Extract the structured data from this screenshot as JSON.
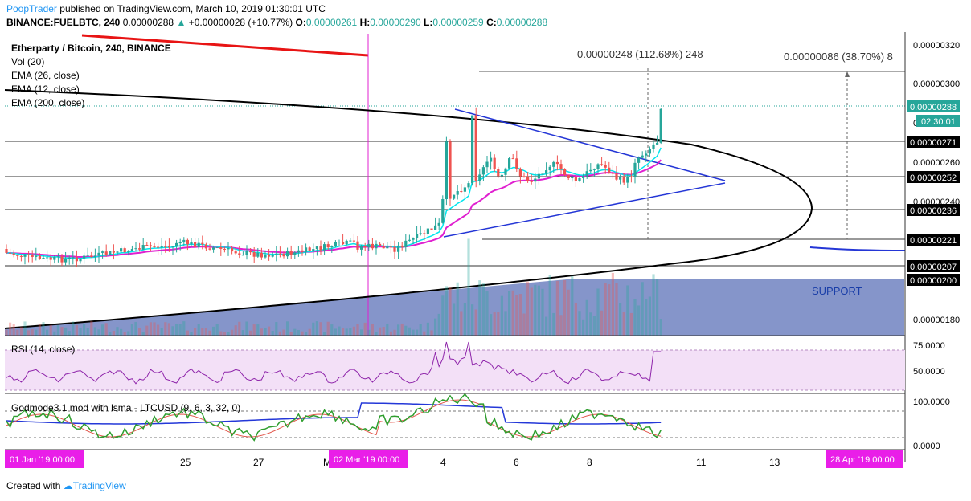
{
  "header": {
    "publisher": "PoopTrader",
    "published_text": "published on TradingView.com, March 10, 2019 01:30:01 UTC",
    "symbol": "BINANCE:FUELBTC, 240",
    "last": "0.00000288",
    "change": "+0.00000028 (+10.77%)",
    "o_label": "O:",
    "o": "0.00000261",
    "h_label": "H:",
    "h": "0.00000290",
    "l_label": "L:",
    "l": "0.00000259",
    "c_label": "C:",
    "c": "0.00000288"
  },
  "legend": {
    "title": "Etherparty / Bitcoin, 240, BINANCE",
    "vol": "Vol (20)",
    "ema26": "EMA (26, close)",
    "ema12": "EMA (12, close)",
    "ema200": "EMA (200, close)"
  },
  "annotations": {
    "measure1": "0.00000248 (112.68%) 248",
    "measure2": "0.00000086 (38.70%) 8",
    "support": "SUPPORT",
    "countdown": "02:30:01"
  },
  "price_axis": {
    "ticks": [
      "0.00000320",
      "0.00000300",
      "0.00000260",
      "0.00000240",
      "0.00000180"
    ],
    "labels": [
      {
        "value": "0.00000288",
        "style": "green"
      },
      {
        "value": "0.00000271",
        "style": "black"
      },
      {
        "value": "0.00000252",
        "style": "black"
      },
      {
        "value": "0.00000236",
        "style": "black"
      },
      {
        "value": "0.00000221",
        "style": "black"
      },
      {
        "value": "0.00000207",
        "style": "black"
      },
      {
        "value": "0.00000200",
        "style": "black"
      }
    ],
    "partial_tick": "0"
  },
  "rsi": {
    "title": "RSI (14, close)",
    "ticks": [
      "75.0000",
      "50.0000"
    ]
  },
  "godmode": {
    "title": "Godmode3.1 mod with lsma - LTCUSD (9, 6, 3, 32, 0)",
    "ticks": [
      "100.0000",
      "0.0000"
    ]
  },
  "time_axis": {
    "ticks": [
      "25",
      "27",
      "M",
      "4",
      "6",
      "8",
      "11",
      "13"
    ],
    "markers": [
      "01 Jan '19   00:00",
      "02 Mar '19   00:00",
      "28 Apr '19   00:00"
    ]
  },
  "footer": {
    "created_with": "Created with",
    "logo": "TradingView"
  },
  "colors": {
    "up": "#26a69a",
    "down": "#ef5350",
    "ema_fast": "#00e5ee",
    "ema_slow": "#e020d0",
    "ema200": "#000000",
    "rsi": "#8e24aa",
    "marker_bg": "#e91ee8",
    "support_fill": "#5c72b8"
  },
  "chart_data": {
    "type": "candlestick",
    "symbol": "FUELBTC",
    "timeframe": "240",
    "ylim": [
      1.73e-06,
      3.27e-06
    ],
    "horizontal_levels": [
      2.71e-06,
      2.52e-06,
      2.36e-06,
      2.21e-06,
      2.07e-06
    ],
    "support_zone_top": 2e-06,
    "last_close": 2.88e-06,
    "pattern": "symmetrical triangle breakout",
    "rsi_range": [
      0,
      100
    ],
    "rsi_last": 74
  }
}
